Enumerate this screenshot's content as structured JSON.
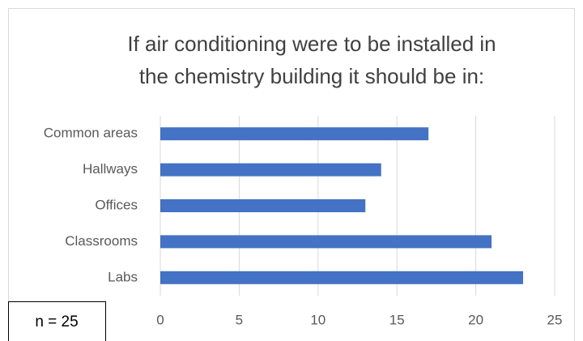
{
  "chart_data": {
    "type": "bar",
    "orientation": "horizontal",
    "title": [
      "If air conditioning were to be installed in",
      "the chemistry building it should be in:"
    ],
    "categories": [
      "Common areas",
      "Hallways",
      "Offices",
      "Classrooms",
      "Labs"
    ],
    "values": [
      17,
      14,
      13,
      21,
      23
    ],
    "color": "#4472c4",
    "xlim": [
      0,
      25
    ],
    "xticks": [
      0,
      5,
      10,
      15,
      20,
      25
    ],
    "grid": true,
    "annotation": "n = 25"
  }
}
